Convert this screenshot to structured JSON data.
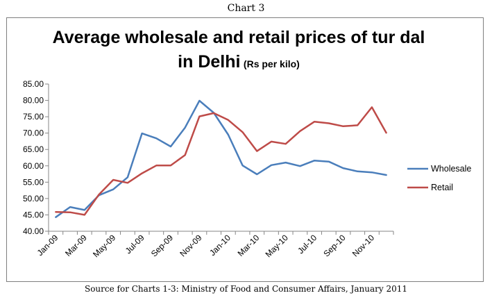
{
  "header": {
    "chart_label": "Chart 3"
  },
  "footer": {
    "source": "Source for Charts 1-3: Ministry of Food and Consumer Affairs, January 2011"
  },
  "chart_data": {
    "type": "line",
    "title_line1": "Average wholesale and retail prices of tur dal",
    "title_line2_main": "in Delhi",
    "title_line2_unit": "(Rs per kilo)",
    "x": [
      "Jan-09",
      "Feb-09",
      "Mar-09",
      "Apr-09",
      "May-09",
      "Jun-09",
      "Jul-09",
      "Aug-09",
      "Sep-09",
      "Oct-09",
      "Nov-09",
      "Dec-09",
      "Jan-10",
      "Feb-10",
      "Mar-10",
      "Apr-10",
      "May-10",
      "Jun-10",
      "Jul-10",
      "Aug-10",
      "Sep-10",
      "Oct-10",
      "Nov-10",
      "Dec-10"
    ],
    "x_tick_labels": [
      "Jan-09",
      "Mar-09",
      "May-09",
      "Jul-09",
      "Sep-09",
      "Nov-09",
      "Jan-10",
      "Mar-10",
      "May-10",
      "Jul-10",
      "Sep-10",
      "Nov-10"
    ],
    "y_ticks": [
      "40.00",
      "45.00",
      "50.00",
      "55.00",
      "60.00",
      "65.00",
      "70.00",
      "75.00",
      "80.00",
      "85.00"
    ],
    "ylim": [
      40,
      85
    ],
    "grid": false,
    "legend_position": "right",
    "series": [
      {
        "name": "Wholesale",
        "color": "#4a7ebb",
        "values": [
          44.3,
          47.4,
          46.5,
          51.0,
          52.8,
          56.5,
          69.9,
          68.4,
          65.9,
          71.7,
          79.9,
          76.2,
          69.5,
          60.1,
          57.4,
          60.2,
          61.0,
          59.9,
          61.6,
          61.3,
          59.3,
          58.3,
          58.0,
          57.2
        ]
      },
      {
        "name": "Retail",
        "color": "#be4b48",
        "values": [
          45.9,
          45.8,
          45.0,
          51.2,
          55.7,
          54.8,
          57.7,
          60.1,
          60.1,
          63.3,
          75.1,
          76.1,
          74.0,
          70.3,
          64.5,
          67.4,
          66.7,
          70.6,
          73.5,
          73.0,
          72.1,
          72.4,
          77.9,
          70.1
        ]
      }
    ]
  }
}
